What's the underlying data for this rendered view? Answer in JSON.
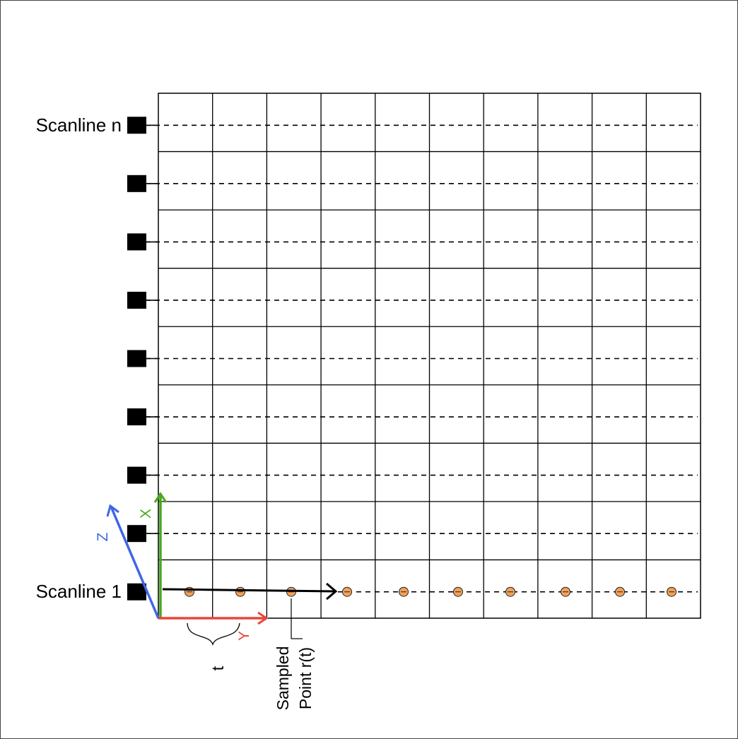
{
  "labels": {
    "scanline_top": "Scanline n",
    "scanline_bottom": "Scanline 1",
    "axis_x": "X",
    "axis_y": "Y",
    "axis_z": "Z",
    "interval": "t",
    "sampled_point_line1": "Sampled",
    "sampled_point_line2": "Point r(t)"
  },
  "grid": {
    "columns": 10,
    "rows": 9
  },
  "scanline_count_visible": 9,
  "sampled_point_count": 10,
  "colors": {
    "axis_x": "#4aa81e",
    "axis_y": "#e8473a",
    "axis_z": "#3f66e8",
    "sample_fill": "#f2a15a",
    "grid": "#000000"
  }
}
